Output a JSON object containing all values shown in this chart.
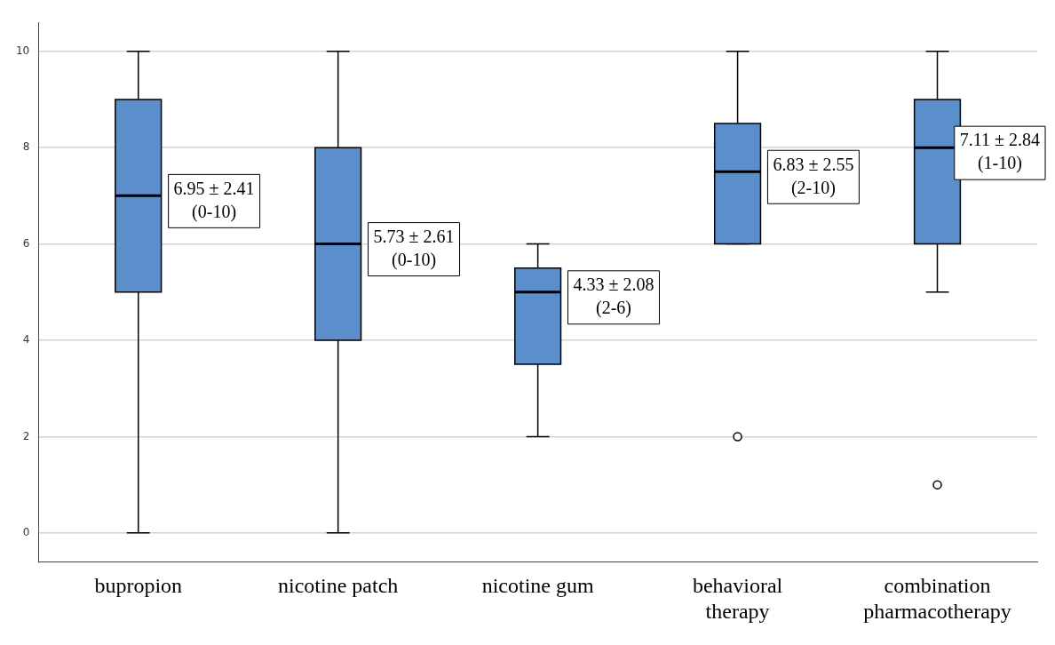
{
  "chart_data": {
    "type": "box",
    "categories": [
      "bupropion",
      "nicotine patch",
      "nicotine gum",
      "behavioral therapy",
      "combination pharmacotherapy"
    ],
    "boxes": [
      {
        "low": 0,
        "q1": 5,
        "median": 7,
        "q3": 9,
        "high": 10
      },
      {
        "low": 0,
        "q1": 4,
        "median": 6,
        "q3": 8,
        "high": 10
      },
      {
        "low": 2,
        "q1": 3.5,
        "median": 5,
        "q3": 5.5,
        "high": 6
      },
      {
        "low": 6,
        "q1": 6,
        "median": 7.5,
        "q3": 8.5,
        "high": 10,
        "outliers": [
          2
        ]
      },
      {
        "low": 5,
        "q1": 6,
        "median": 8,
        "q3": 9,
        "high": 10,
        "outliers": [
          1
        ]
      }
    ],
    "color": "#5b8fcc",
    "ylim": [
      -0.6,
      10.6
    ],
    "yticks": [
      0,
      2,
      4,
      6,
      8,
      10
    ],
    "grid": "y",
    "annotations": [
      "6.95 ± 2.41\n(0-10)",
      "5.73 ± 2.61\n(0-10)",
      "4.33 ± 2.08\n(2-6)",
      "6.83 ± 2.55\n(2-10)",
      "7.11 ± 2.84\n(1-10)"
    ]
  }
}
